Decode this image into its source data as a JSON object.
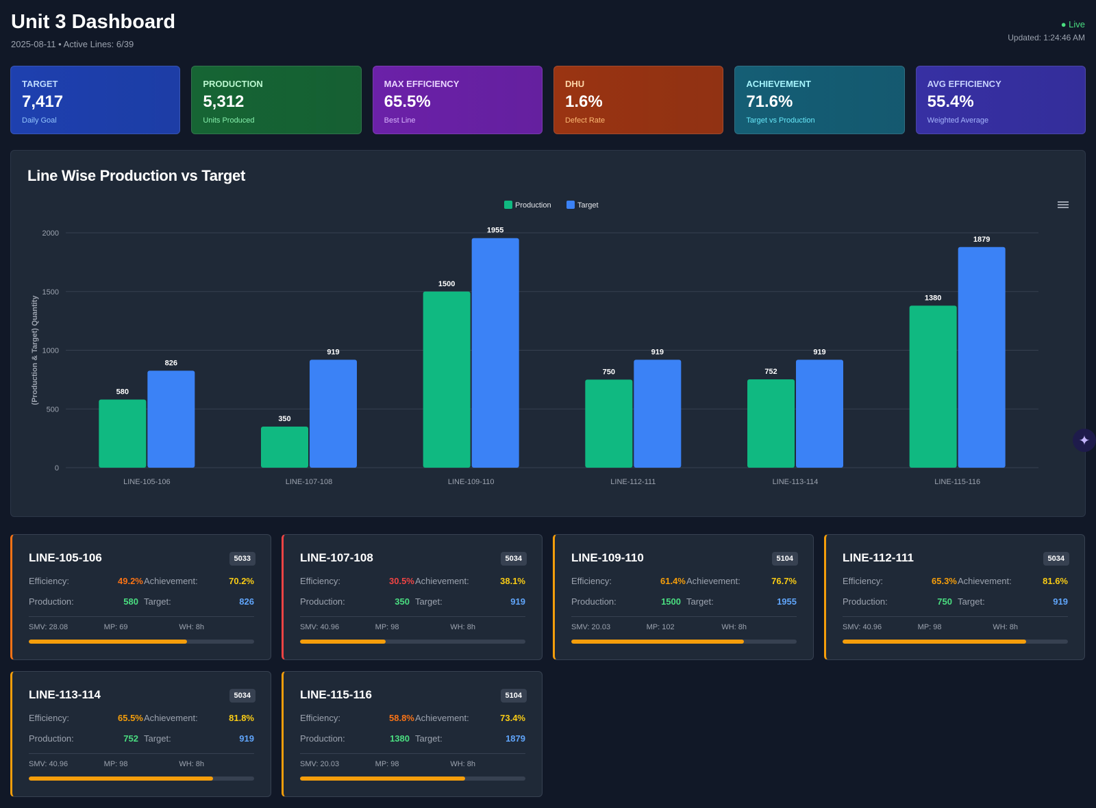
{
  "header": {
    "title": "Unit 3 Dashboard",
    "subtitle": "2025-08-11 • Active Lines: 6/39",
    "live": "● Live",
    "updated": "Updated: 1:24:46 AM"
  },
  "kpis": [
    {
      "label": "TARGET",
      "value": "7,417",
      "sub": "Daily Goal",
      "bg": "#1e40af",
      "lc": "#bfdbfe",
      "sc": "#93c5fd"
    },
    {
      "label": "PRODUCTION",
      "value": "5,312",
      "sub": "Units Produced",
      "bg": "#166534",
      "lc": "#bbf7d0",
      "sc": "#86efac"
    },
    {
      "label": "MAX EFFICIENCY",
      "value": "65.5%",
      "sub": "Best Line",
      "bg": "#6b21a8",
      "lc": "#e9d5ff",
      "sc": "#d8b4fe"
    },
    {
      "label": "DHU",
      "value": "1.6%",
      "sub": "Defect Rate",
      "bg": "#9a3412",
      "lc": "#fed7aa",
      "sc": "#fdba74"
    },
    {
      "label": "ACHIEVEMENT",
      "value": "71.6%",
      "sub": "Target vs Production",
      "bg": "#155e75",
      "lc": "#a5f3fc",
      "sc": "#67e8f9"
    },
    {
      "label": "AVG EFFICIENCY",
      "value": "55.4%",
      "sub": "Weighted Average",
      "bg": "#3730a3",
      "lc": "#c7d2fe",
      "sc": "#a5b4fc"
    }
  ],
  "chart_data": {
    "type": "bar",
    "title": "Line Wise Production vs Target",
    "ylabel": "(Production & Target) Quantity",
    "ylim": [
      0,
      2000
    ],
    "yticks": [
      0,
      500,
      1000,
      1500,
      2000
    ],
    "legend": "top-center",
    "grid": true,
    "categories": [
      "LINE-105-106",
      "LINE-107-108",
      "LINE-109-110",
      "LINE-112-111",
      "LINE-113-114",
      "LINE-115-116"
    ],
    "series": [
      {
        "name": "Production",
        "color": "#10b981",
        "values": [
          580,
          350,
          1500,
          750,
          752,
          1380
        ]
      },
      {
        "name": "Target",
        "color": "#3b82f6",
        "values": [
          826,
          919,
          1955,
          919,
          919,
          1879
        ]
      }
    ]
  },
  "labels": {
    "efficiency": "Efficiency:",
    "achievement": "Achievement:",
    "production": "Production:",
    "target": "Target:"
  },
  "lines": [
    {
      "name": "LINE-105-106",
      "code": "5033",
      "eff": "49.2%",
      "ach": "70.2%",
      "prod": "580",
      "target": "826",
      "smv": "SMV: 28.08",
      "mp": "MP: 69",
      "wh": "WH: 8h",
      "progress": 70.2,
      "effColor": "#f97316",
      "border": "#f97316"
    },
    {
      "name": "LINE-107-108",
      "code": "5034",
      "eff": "30.5%",
      "ach": "38.1%",
      "prod": "350",
      "target": "919",
      "smv": "SMV: 40.96",
      "mp": "MP: 98",
      "wh": "WH: 8h",
      "progress": 38.1,
      "effColor": "#ef4444",
      "border": "#ef4444"
    },
    {
      "name": "LINE-109-110",
      "code": "5104",
      "eff": "61.4%",
      "ach": "76.7%",
      "prod": "1500",
      "target": "1955",
      "smv": "SMV: 20.03",
      "mp": "MP: 102",
      "wh": "WH: 8h",
      "progress": 76.7,
      "effColor": "#f59e0b",
      "border": "#f59e0b"
    },
    {
      "name": "LINE-112-111",
      "code": "5034",
      "eff": "65.3%",
      "ach": "81.6%",
      "prod": "750",
      "target": "919",
      "smv": "SMV: 40.96",
      "mp": "MP: 98",
      "wh": "WH: 8h",
      "progress": 81.6,
      "effColor": "#f59e0b",
      "border": "#f59e0b"
    },
    {
      "name": "LINE-113-114",
      "code": "5034",
      "eff": "65.5%",
      "ach": "81.8%",
      "prod": "752",
      "target": "919",
      "smv": "SMV: 40.96",
      "mp": "MP: 98",
      "wh": "WH: 8h",
      "progress": 81.8,
      "effColor": "#f59e0b",
      "border": "#f59e0b"
    },
    {
      "name": "LINE-115-116",
      "code": "5104",
      "eff": "58.8%",
      "ach": "73.4%",
      "prod": "1380",
      "target": "1879",
      "smv": "SMV: 20.03",
      "mp": "MP: 98",
      "wh": "WH: 8h",
      "progress": 73.4,
      "effColor": "#f97316",
      "border": "#f59e0b"
    }
  ]
}
